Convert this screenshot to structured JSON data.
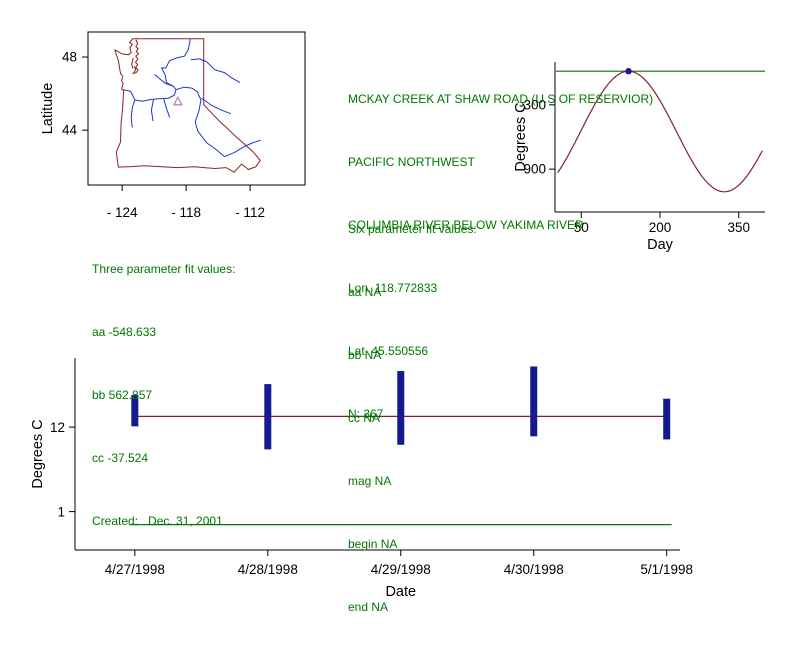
{
  "colors": {
    "text_green": "#007700",
    "boundary": "#8B2323",
    "river": "#2233CC",
    "fit_line": "#7B2430",
    "bar": "#151A8C",
    "green_line": "#007700",
    "station_marker": "#C080C0",
    "axis": "#000000"
  },
  "station": {
    "lines": [
      "MCKAY CREEK AT SHAW ROAD (U.S OF RESERVIOR)",
      "PACIFIC NORTHWEST",
      "COLUMBIA RIVER BELOW YAKIMA RIVER",
      "Lon. 118.772833",
      "Lat. 45.550556",
      "N: 367"
    ]
  },
  "six_parameter_fit": {
    "heading": "Six parameter fit values:",
    "lines": [
      "aa NA",
      "bb NA",
      "cc NA",
      "mag NA",
      "begin NA",
      "end NA"
    ]
  },
  "three_parameter_fit": {
    "heading": "Three parameter fit values:",
    "lines": [
      "aa -548.633",
      "bb 562.857",
      "cc -37.524",
      "Created:   Dec. 31, 2001"
    ]
  },
  "map": {
    "ylabel": "Latitude",
    "yticks": [
      {
        "label": "48",
        "value": 48
      },
      {
        "label": "44",
        "value": 44
      }
    ],
    "xticks": [
      {
        "label": "- 124",
        "value": -124
      },
      {
        "label": "- 118",
        "value": -118
      },
      {
        "label": "- 112",
        "value": -112
      }
    ],
    "bounds": {
      "lon": [
        -127.2,
        -106.85
      ],
      "lat": [
        41.0,
        49.37
      ]
    },
    "station": {
      "lon": -118.772833,
      "lat": 45.550556
    },
    "outline": [
      [
        [
          -124.7,
          48.4
        ],
        [
          -124.0,
          48.17
        ],
        [
          -123.4,
          48.12
        ],
        [
          -123.15,
          48.25
        ],
        [
          -123.28,
          48.5
        ],
        [
          -123.05,
          48.68
        ],
        [
          -123.3,
          48.8
        ],
        [
          -123.0,
          49.0
        ],
        [
          -116.35,
          49.0
        ],
        [
          -116.35,
          45.4
        ],
        [
          -115.55,
          44.9
        ],
        [
          -114.8,
          44.45
        ],
        [
          -114.05,
          44.05
        ],
        [
          -113.25,
          43.6
        ],
        [
          -112.45,
          43.2
        ],
        [
          -111.7,
          42.8
        ],
        [
          -111.05,
          42.35
        ],
        [
          -111.45,
          42.0
        ],
        [
          -112.15,
          41.85
        ],
        [
          -112.8,
          42.15
        ],
        [
          -113.5,
          41.7
        ],
        [
          -114.25,
          41.95
        ],
        [
          -115.3,
          41.9
        ],
        [
          -116.3,
          41.95
        ],
        [
          -117.2,
          42.0
        ],
        [
          -118.8,
          41.95
        ],
        [
          -120.3,
          42.0
        ],
        [
          -121.9,
          42.05
        ],
        [
          -123.3,
          42.0
        ],
        [
          -124.35,
          41.98
        ],
        [
          -124.55,
          42.8
        ],
        [
          -124.15,
          43.35
        ],
        [
          -124.1,
          44.4
        ],
        [
          -123.95,
          45.25
        ],
        [
          -123.9,
          45.8
        ],
        [
          -123.85,
          46.15
        ],
        [
          -124.05,
          46.25
        ],
        [
          -123.9,
          46.55
        ],
        [
          -124.05,
          46.7
        ],
        [
          -123.95,
          46.95
        ],
        [
          -124.15,
          47.1
        ],
        [
          -124.35,
          47.8
        ],
        [
          -124.7,
          48.4
        ]
      ],
      [
        [
          -122.7,
          48.95
        ],
        [
          -122.55,
          48.72
        ],
        [
          -122.72,
          48.58
        ],
        [
          -122.5,
          48.45
        ],
        [
          -122.68,
          48.3
        ],
        [
          -122.45,
          48.17
        ],
        [
          -122.72,
          48.05
        ],
        [
          -122.52,
          47.9
        ],
        [
          -122.75,
          47.72
        ],
        [
          -122.55,
          47.58
        ],
        [
          -122.72,
          47.42
        ],
        [
          -122.5,
          47.28
        ],
        [
          -122.68,
          47.15
        ],
        [
          -122.95,
          47.1
        ],
        [
          -122.72,
          47.32
        ],
        [
          -122.88,
          47.5
        ]
      ],
      [
        [
          -122.95,
          47.95
        ],
        [
          -123.1,
          47.6
        ],
        [
          -122.98,
          47.35
        ]
      ]
    ],
    "rivers": [
      [
        [
          -117.6,
          49.0
        ],
        [
          -117.8,
          48.4
        ],
        [
          -118.15,
          48.05
        ],
        [
          -118.9,
          47.95
        ],
        [
          -119.55,
          47.8
        ],
        [
          -119.9,
          47.4
        ],
        [
          -120.3,
          47.4
        ],
        [
          -119.95,
          47.0
        ],
        [
          -119.85,
          46.6
        ],
        [
          -119.2,
          46.4
        ],
        [
          -118.95,
          46.22
        ],
        [
          -119.1,
          45.92
        ],
        [
          -119.65,
          45.75
        ],
        [
          -120.6,
          45.72
        ],
        [
          -121.3,
          45.68
        ],
        [
          -122.1,
          45.58
        ],
        [
          -122.8,
          45.65
        ],
        [
          -123.2,
          46.12
        ],
        [
          -123.9,
          46.22
        ]
      ],
      [
        [
          -111.0,
          43.45
        ],
        [
          -111.8,
          43.3
        ],
        [
          -112.55,
          43.1
        ],
        [
          -113.4,
          42.8
        ],
        [
          -114.4,
          42.55
        ],
        [
          -115.2,
          42.95
        ],
        [
          -116.05,
          43.3
        ],
        [
          -116.9,
          43.95
        ],
        [
          -117.15,
          44.45
        ],
        [
          -116.8,
          45.05
        ],
        [
          -116.6,
          45.65
        ],
        [
          -116.95,
          46.1
        ],
        [
          -117.45,
          46.3
        ],
        [
          -118.2,
          46.35
        ],
        [
          -118.95,
          46.22
        ]
      ],
      [
        [
          -122.8,
          45.65
        ],
        [
          -123.05,
          45.25
        ],
        [
          -123.15,
          44.7
        ],
        [
          -123.05,
          44.15
        ]
      ],
      [
        [
          -120.95,
          47.05
        ],
        [
          -120.45,
          46.8
        ],
        [
          -119.9,
          46.55
        ],
        [
          -119.2,
          46.4
        ]
      ],
      [
        [
          -117.55,
          47.85
        ],
        [
          -116.75,
          47.9
        ],
        [
          -116.1,
          47.75
        ],
        [
          -115.3,
          47.3
        ],
        [
          -114.4,
          47.15
        ],
        [
          -113.7,
          46.85
        ],
        [
          -112.95,
          46.6
        ]
      ],
      [
        [
          -121.05,
          45.7
        ],
        [
          -121.25,
          45.1
        ],
        [
          -121.1,
          44.5
        ]
      ],
      [
        [
          -120.1,
          45.72
        ],
        [
          -119.85,
          45.2
        ],
        [
          -119.55,
          44.7
        ]
      ],
      [
        [
          -113.8,
          44.9
        ],
        [
          -114.7,
          45.1
        ],
        [
          -115.6,
          45.35
        ],
        [
          -116.55,
          45.75
        ]
      ]
    ]
  },
  "chart_data": [
    {
      "id": "seasonal-fit",
      "type": "line",
      "xlabel": "Day",
      "ylabel": "Degrees C",
      "xlim": [
        0,
        400
      ],
      "ylim": [
        -1300,
        100
      ],
      "xticks": [
        50,
        200,
        350
      ],
      "yticks": [
        -300,
        -900
      ],
      "fit": {
        "aa": -548.633,
        "bb": 562.857,
        "cc": -37.524,
        "peak_day": 140,
        "period": 365,
        "domain": [
          5,
          395
        ]
      },
      "max_line": {
        "value": 14.2
      },
      "marker": {
        "day": 140,
        "value": 14.2
      }
    },
    {
      "id": "daily-range",
      "type": "range-bar",
      "xlabel": "Date",
      "ylabel": "Degrees C",
      "xlim": [
        -0.45,
        4.1
      ],
      "ylim": [
        -4,
        21
      ],
      "yticks": [
        12,
        1
      ],
      "categories": [
        "4/27/1998",
        "4/28/1998",
        "4/29/1998",
        "4/30/1998",
        "5/1/1998"
      ],
      "bars": [
        {
          "date": "4/27/1998",
          "min": 12.1,
          "max": 16.2
        },
        {
          "date": "4/28/1998",
          "min": 9.1,
          "max": 17.6
        },
        {
          "date": "4/29/1998",
          "min": 9.7,
          "max": 19.3
        },
        {
          "date": "4/30/1998",
          "min": 10.8,
          "max": 19.9
        },
        {
          "date": "5/1/1998",
          "min": 10.4,
          "max": 15.7
        }
      ],
      "fit_line": {
        "value": 13.4
      },
      "ref_line": {
        "value": -0.7
      }
    }
  ]
}
